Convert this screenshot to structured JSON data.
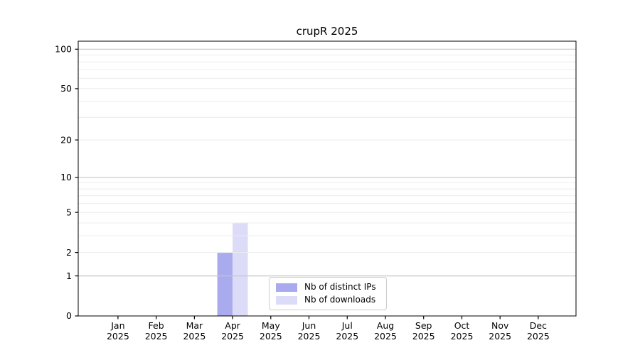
{
  "figure": {
    "background": "#ffffff",
    "axis_color": "#000000"
  },
  "chart_data": {
    "type": "bar",
    "title": "crupR 2025",
    "xlabel": "",
    "ylabel": "",
    "categories": [
      "Jan",
      "Feb",
      "Mar",
      "Apr",
      "May",
      "Jun",
      "Jul",
      "Aug",
      "Sep",
      "Oct",
      "Nov",
      "Dec"
    ],
    "x_sublabel": "2025",
    "series": [
      {
        "name": "Nb of distinct IPs",
        "color": "#aaaaee",
        "values": [
          0,
          0,
          0,
          2,
          0,
          0,
          0,
          0,
          0,
          0,
          0,
          0
        ]
      },
      {
        "name": "Nb of downloads",
        "color": "#dcdcf8",
        "values": [
          0,
          0,
          0,
          4,
          0,
          0,
          0,
          0,
          0,
          0,
          0,
          0
        ]
      }
    ],
    "y_scale": "log1p",
    "y_ticks": [
      0,
      1,
      2,
      5,
      10,
      20,
      50,
      100
    ],
    "y_max": 115,
    "grid": {
      "major_values": [
        1,
        10,
        100
      ],
      "minor_values": [
        2,
        3,
        4,
        5,
        6,
        7,
        8,
        9,
        20,
        30,
        40,
        50,
        60,
        70,
        80,
        90
      ],
      "major_color": "#c6c6c6",
      "minor_color": "#ececec"
    },
    "legend_position": "lower center"
  }
}
